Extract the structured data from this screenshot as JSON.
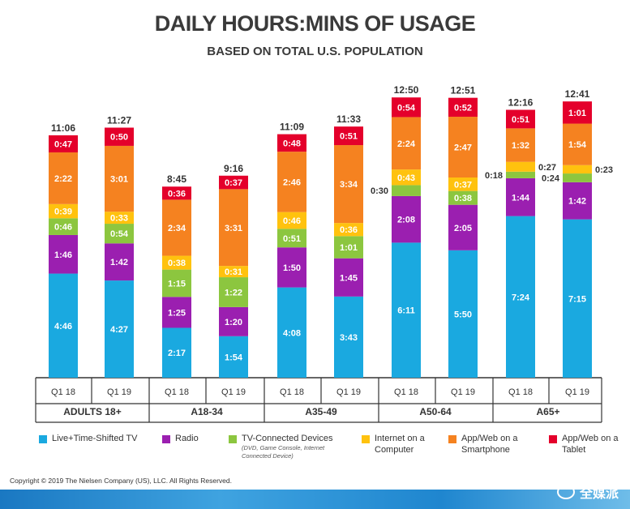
{
  "title": "DAILY HOURS:MINS OF USAGE",
  "subtitle": "BASED ON TOTAL U.S. POPULATION",
  "copyright": "Copyright © 2019 The Nielsen Company (US), LLC. All Rights Reserved.",
  "watermark": "全媒派",
  "colors": {
    "live_tv": "#1aa9e0",
    "radio": "#9b1fb0",
    "tv_connected": "#8cc63f",
    "internet_computer": "#ffc20e",
    "app_smartphone": "#f58220",
    "app_tablet": "#e4002b"
  },
  "legend": [
    {
      "key": "live_tv",
      "label": "Live+Time-Shifted TV",
      "note": ""
    },
    {
      "key": "radio",
      "label": "Radio",
      "note": ""
    },
    {
      "key": "tv_connected",
      "label": "TV-Connected Devices",
      "note": "(DVD, Game Console, Internet Connected Device)"
    },
    {
      "key": "internet_computer",
      "label": "Internet on a Computer",
      "note": ""
    },
    {
      "key": "app_smartphone",
      "label": "App/Web on a Smartphone",
      "note": ""
    },
    {
      "key": "app_tablet",
      "label": "App/Web on a Tablet",
      "note": ""
    }
  ],
  "chart_data": {
    "type": "bar",
    "stacked": true,
    "unit": "hours:minutes",
    "groups": [
      "ADULTS 18+",
      "A18-34",
      "A35-49",
      "A50-64",
      "A65+"
    ],
    "categories": [
      "Q1 18",
      "Q1 19",
      "Q1 18",
      "Q1 19",
      "Q1 18",
      "Q1 19",
      "Q1 18",
      "Q1 19",
      "Q1 18",
      "Q1 19"
    ],
    "totals": [
      "11:06",
      "11:27",
      "8:45",
      "9:16",
      "11:09",
      "11:33",
      "12:50",
      "12:51",
      "12:16",
      "12:41"
    ],
    "series": [
      {
        "key": "live_tv",
        "name": "Live+Time-Shifted TV",
        "values": [
          "4:46",
          "4:27",
          "2:17",
          "1:54",
          "4:08",
          "3:43",
          "6:11",
          "5:50",
          "7:24",
          "7:15"
        ]
      },
      {
        "key": "radio",
        "name": "Radio",
        "values": [
          "1:46",
          "1:42",
          "1:25",
          "1:20",
          "1:50",
          "1:45",
          "2:08",
          "2:05",
          "1:44",
          "1:42"
        ]
      },
      {
        "key": "tv_connected",
        "name": "TV-Connected Devices",
        "values": [
          "0:46",
          "0:54",
          "1:15",
          "1:22",
          "0:51",
          "1:01",
          "0:30",
          "0:38",
          "0:18",
          "0:24"
        ]
      },
      {
        "key": "internet_computer",
        "name": "Internet on a Computer",
        "values": [
          "0:39",
          "0:33",
          "0:38",
          "0:31",
          "0:46",
          "0:36",
          "0:43",
          "0:37",
          "0:27",
          "0:23"
        ]
      },
      {
        "key": "app_smartphone",
        "name": "App/Web on a Smartphone",
        "values": [
          "2:22",
          "3:01",
          "2:34",
          "3:31",
          "2:46",
          "3:34",
          "2:24",
          "2:47",
          "1:32",
          "1:54"
        ]
      },
      {
        "key": "app_tablet",
        "name": "App/Web on a Tablet",
        "values": [
          "0:47",
          "0:50",
          "0:36",
          "0:37",
          "0:48",
          "0:51",
          "0:54",
          "0:52",
          "0:51",
          "1:01"
        ]
      }
    ],
    "ylim_minutes": [
      0,
      815
    ],
    "grid": false,
    "legend_position": "bottom"
  }
}
